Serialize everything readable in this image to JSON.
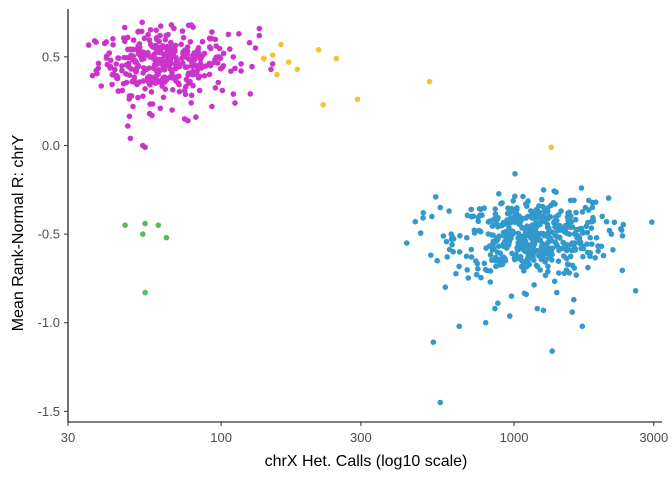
{
  "chart_data": {
    "type": "scatter",
    "xlabel": "chrX Het. Calls (log10 scale)",
    "ylabel": "Mean Rank-Normal R: chrY",
    "x_scale": "log10",
    "xlim": [
      30,
      3200
    ],
    "ylim": [
      -1.56,
      0.77
    ],
    "x_ticks": [
      30,
      100,
      300,
      1000,
      3000
    ],
    "x_tick_labels": [
      "30",
      "100",
      "300",
      "1000",
      "3000"
    ],
    "y_ticks": [
      0.5,
      0.0,
      -0.5,
      -1.0,
      -1.5
    ],
    "y_tick_labels": [
      "0.5",
      "0.0",
      "-0.5",
      "-1.0",
      "-1.5"
    ],
    "grid": false,
    "legend": "none",
    "series": [
      {
        "color": "#cc33cc",
        "points": [
          [
            37,
            0.59
          ],
          [
            50,
            0.22
          ],
          [
            54,
            0.0
          ],
          [
            55,
            -0.01
          ],
          [
            52,
            0.27
          ],
          [
            48,
            0.11
          ],
          [
            49,
            0.04
          ],
          [
            57,
            0.18
          ],
          [
            58,
            0.17
          ],
          [
            68,
            0.2
          ],
          [
            62,
            0.21
          ],
          [
            75,
            0.15
          ],
          [
            77,
            0.14
          ],
          [
            82,
            0.16
          ],
          [
            79,
            0.24
          ],
          [
            93,
            0.22
          ],
          [
            101,
            0.31
          ],
          [
            110,
            0.29
          ],
          [
            135,
            0.62
          ],
          [
            135,
            0.66
          ],
          [
            125,
            0.58
          ],
          [
            131,
            0.55
          ],
          [
            150,
            0.46
          ],
          [
            148,
            0.43
          ],
          [
            140,
            0.49
          ],
          [
            117,
            0.42
          ],
          [
            117,
            0.46
          ],
          [
            115,
            0.63
          ],
          [
            93,
            0.64
          ],
          [
            69,
            0.66
          ],
          [
            60,
            0.65
          ],
          [
            52,
            0.64
          ],
          [
            48,
            0.61
          ],
          [
            42,
            0.48
          ],
          [
            43,
            0.4
          ],
          [
            44,
            0.38
          ],
          [
            46,
            0.31
          ],
          [
            55,
            0.32
          ],
          [
            65,
            0.37
          ],
          [
            80,
            0.4
          ],
          [
            92,
            0.45
          ],
          [
            98,
            0.5
          ],
          [
            102,
            0.52
          ],
          [
            110,
            0.5
          ]
        ],
        "cloud": {
          "x_log_center": 1.8,
          "x_log_sd": 0.11,
          "y_center": 0.47,
          "y_sd": 0.09,
          "n": 320
        }
      },
      {
        "color": "#f5c330",
        "points": [
          [
            140,
            0.49
          ],
          [
            150,
            0.51
          ],
          [
            160,
            0.57
          ],
          [
            155,
            0.4
          ],
          [
            170,
            0.47
          ],
          [
            182,
            0.43
          ],
          [
            215,
            0.54
          ],
          [
            247,
            0.49
          ],
          [
            223,
            0.23
          ],
          [
            292,
            0.26
          ],
          [
            515,
            0.36
          ],
          [
            1340,
            -0.01
          ]
        ]
      },
      {
        "color": "#5cb85c",
        "points": [
          [
            47,
            -0.45
          ],
          [
            55,
            -0.44
          ],
          [
            61,
            -0.45
          ],
          [
            65,
            -0.52
          ],
          [
            54,
            -0.5
          ],
          [
            55,
            -0.83
          ]
        ]
      },
      {
        "color": "#3399cc",
        "points": [
          [
            430,
            -0.55
          ],
          [
            460,
            -0.43
          ],
          [
            490,
            -0.38
          ],
          [
            540,
            -0.29
          ],
          [
            560,
            -0.35
          ],
          [
            600,
            -0.37
          ],
          [
            620,
            -0.6
          ],
          [
            650,
            -1.02
          ],
          [
            800,
            -1.0
          ],
          [
            860,
            -0.92
          ],
          [
            880,
            -0.89
          ],
          [
            980,
            -0.85
          ],
          [
            1100,
            -0.84
          ],
          [
            1200,
            -0.92
          ],
          [
            1260,
            -0.93
          ],
          [
            1350,
            -1.16
          ],
          [
            1400,
            -0.83
          ],
          [
            1580,
            -0.94
          ],
          [
            1600,
            -0.87
          ],
          [
            1710,
            -1.02
          ],
          [
            1820,
            -0.52
          ],
          [
            2000,
            -0.4
          ],
          [
            2070,
            -0.43
          ],
          [
            2150,
            -0.5
          ],
          [
            2600,
            -0.82
          ],
          [
            530,
            -1.11
          ],
          [
            560,
            -1.45
          ],
          [
            610,
            -0.5
          ],
          [
            690,
            -0.52
          ],
          [
            760,
            -0.48
          ],
          [
            830,
            -0.77
          ],
          [
            900,
            -0.64
          ],
          [
            1380,
            -0.33
          ],
          [
            1560,
            -0.31
          ],
          [
            1700,
            -0.24
          ],
          [
            1800,
            -0.31
          ],
          [
            1900,
            -0.32
          ]
        ],
        "cloud": {
          "x_log_center": 3.06,
          "x_log_sd": 0.13,
          "y_center": -0.52,
          "y_sd": 0.11,
          "n": 460
        }
      }
    ]
  }
}
